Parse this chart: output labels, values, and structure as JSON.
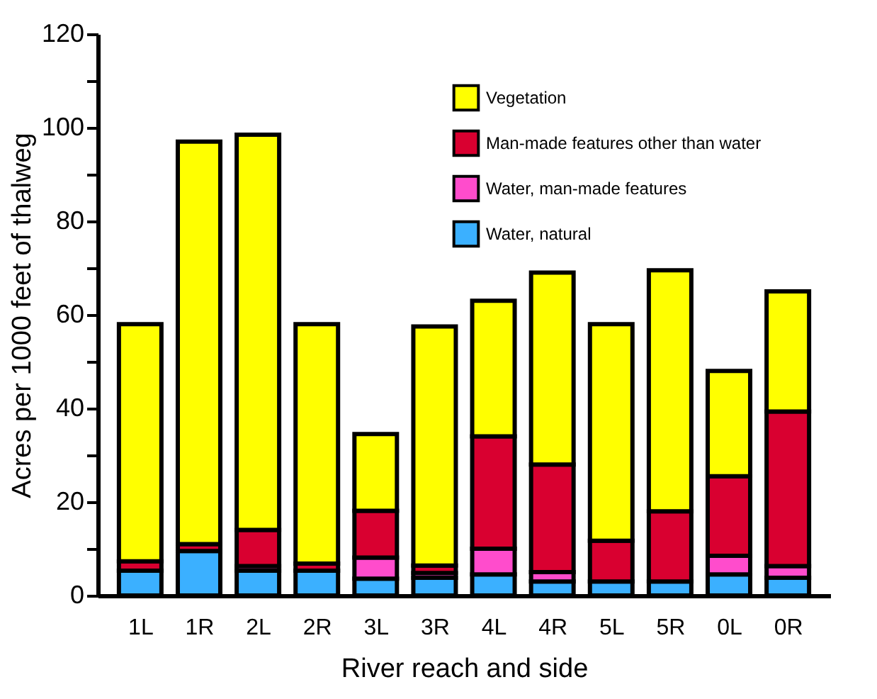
{
  "chart_data": {
    "type": "bar",
    "stacked": true,
    "xlabel": "River reach and side",
    "ylabel": "Acres per 1000 feet of thalweg",
    "categories": [
      "1L",
      "1R",
      "2L",
      "2R",
      "3L",
      "3R",
      "4L",
      "4R",
      "5L",
      "5R",
      "0L",
      "0R"
    ],
    "series": [
      {
        "name": "Water, natural",
        "color": "#3bb0ff",
        "values": [
          5.3,
          9.5,
          5.3,
          5.3,
          3.6,
          3.8,
          4.5,
          3,
          3,
          3,
          4.5,
          3.8
        ]
      },
      {
        "name": "Water, man-made features",
        "color": "#ff4ccc",
        "values": [
          0,
          0,
          1,
          0,
          4.5,
          1,
          5.5,
          2,
          0,
          0,
          4,
          2.5
        ]
      },
      {
        "name": "Man-made features other than water",
        "color": "#d90030",
        "values": [
          2,
          1.5,
          7.7,
          1.5,
          10,
          1.6,
          24,
          23,
          8.7,
          15,
          17,
          33
        ]
      },
      {
        "name": "Vegetation",
        "color": "#ffff00",
        "values": [
          50.7,
          86,
          84.5,
          51.2,
          16.4,
          51.1,
          29,
          41,
          46.3,
          51.5,
          22.5,
          25.7
        ]
      }
    ],
    "ylim": [
      0,
      120
    ],
    "yticks": [
      0,
      {
        "value": 10,
        "label": null
      },
      20,
      {
        "value": 30,
        "label": null
      },
      40,
      {
        "value": 50,
        "label": null
      },
      60,
      {
        "value": 70,
        "label": null
      },
      80,
      {
        "value": 90,
        "label": null
      },
      100,
      {
        "value": 110,
        "label": null
      },
      120
    ],
    "grid": false,
    "legend": "top right"
  }
}
